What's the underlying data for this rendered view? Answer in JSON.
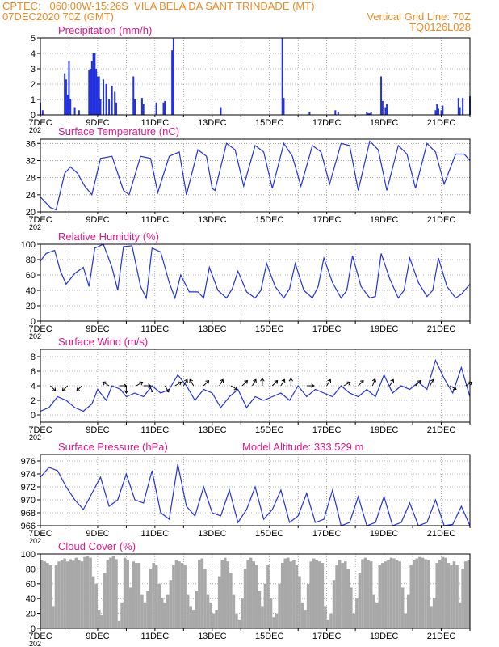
{
  "header": {
    "line1": "CPTEC:   060:00W-15:26S  VILA BELA DA SANT TRINDADE (MT)",
    "line2": "07DEC2020 70Z (GMT)",
    "grid_note": "Vertical Grid Line: 70Z",
    "code": "TQ0126L028"
  },
  "x_tick_labels": [
    "7DEC",
    "9DEC",
    "11DEC",
    "13DEC",
    "15DEC",
    "17DEC",
    "19DEC",
    "21DEC"
  ],
  "year_stub": "202",
  "colors": {
    "header": "#f08a24",
    "title": "#e0188c",
    "series": "#2233dd",
    "cloud": "#a8a8a8"
  },
  "chart_data": [
    {
      "type": "bar",
      "title": "Precipitation (mm/h)",
      "ylim": [
        0,
        5
      ],
      "yticks": [
        "0",
        "1",
        "2",
        "3",
        "4",
        "5"
      ],
      "x_days": [
        0,
        15
      ],
      "x": [
        0.0,
        0.08,
        0.85,
        0.9,
        0.95,
        1.0,
        1.05,
        1.2,
        1.35,
        1.7,
        1.75,
        1.8,
        1.85,
        1.9,
        1.95,
        2.0,
        2.05,
        2.1,
        2.2,
        2.3,
        2.4,
        2.5,
        2.6,
        2.65,
        3.25,
        3.3,
        3.55,
        3.6,
        4.05,
        4.3,
        4.35,
        4.6,
        4.65,
        6.3,
        8.45,
        8.5,
        9.4,
        10.3,
        10.4,
        11.4,
        11.45,
        11.5,
        11.55,
        11.9,
        11.95,
        12.05,
        12.1,
        13.8,
        13.85,
        13.9,
        14.0,
        14.05,
        14.6,
        14.65,
        14.75,
        15.0
      ],
      "values": [
        0.8,
        0.3,
        2.7,
        2.3,
        1.3,
        3.5,
        1.0,
        0.5,
        0.3,
        2.9,
        3.0,
        3.5,
        4.0,
        4.0,
        3.0,
        2.5,
        2.5,
        1.0,
        2.3,
        2.0,
        1.0,
        1.9,
        1.5,
        0.8,
        2.5,
        1.0,
        1.1,
        0.7,
        0.8,
        0.8,
        0.9,
        4.2,
        5.0,
        0.5,
        5.0,
        1.1,
        0.2,
        0.3,
        0.2,
        0.2,
        0.1,
        0.1,
        0.2,
        2.5,
        0.9,
        0.5,
        0.7,
        0.3,
        0.7,
        0.4,
        0.3,
        0.6,
        1.1,
        0.5,
        1.1,
        1.2
      ]
    },
    {
      "type": "line",
      "title": "Surface Temperature (nC)",
      "ylim": [
        20,
        37
      ],
      "yticks": [
        "20",
        "24",
        "28",
        "32",
        "36"
      ],
      "x_days": [
        0,
        15
      ],
      "x": [
        0.0,
        0.35,
        0.55,
        0.85,
        1.05,
        1.3,
        1.55,
        1.8,
        2.1,
        2.5,
        2.9,
        3.1,
        3.5,
        3.85,
        4.1,
        4.5,
        4.85,
        5.1,
        5.5,
        5.8,
        6.0,
        6.1,
        6.5,
        6.8,
        7.1,
        7.5,
        7.8,
        8.1,
        8.5,
        8.8,
        9.1,
        9.5,
        9.8,
        10.1,
        10.5,
        10.8,
        11.1,
        11.5,
        11.8,
        12.1,
        12.5,
        12.8,
        13.1,
        13.5,
        13.8,
        14.1,
        14.5,
        14.8,
        15.0
      ],
      "values": [
        23.5,
        21.0,
        20.5,
        29.0,
        30.5,
        29.0,
        26.0,
        24.0,
        32.5,
        33.0,
        25.0,
        24.0,
        33.0,
        32.5,
        24.5,
        33.0,
        34.0,
        24.0,
        34.5,
        33.0,
        25.5,
        25.0,
        36.0,
        34.5,
        26.0,
        35.5,
        34.0,
        25.5,
        36.0,
        33.0,
        26.0,
        35.5,
        34.0,
        26.5,
        36.0,
        35.5,
        25.0,
        36.5,
        34.5,
        25.0,
        35.5,
        33.5,
        25.5,
        36.0,
        34.0,
        26.5,
        33.5,
        33.5,
        32.0
      ]
    },
    {
      "type": "line",
      "title": "Relative Humidity (%)",
      "ylim": [
        0,
        100
      ],
      "yticks": [
        "0",
        "20",
        "40",
        "60",
        "80",
        "100"
      ],
      "x_days": [
        0,
        15
      ],
      "x": [
        0.0,
        0.2,
        0.5,
        0.7,
        0.9,
        1.2,
        1.5,
        1.7,
        1.9,
        2.2,
        2.5,
        2.7,
        2.9,
        3.2,
        3.5,
        3.7,
        3.9,
        4.2,
        4.5,
        4.7,
        4.9,
        5.2,
        5.5,
        5.7,
        5.9,
        6.2,
        6.5,
        6.7,
        6.9,
        7.2,
        7.5,
        7.7,
        7.9,
        8.2,
        8.5,
        8.7,
        8.9,
        9.2,
        9.5,
        9.7,
        9.9,
        10.2,
        10.5,
        10.7,
        10.9,
        11.2,
        11.5,
        11.7,
        11.9,
        12.2,
        12.5,
        12.7,
        12.9,
        13.2,
        13.5,
        13.7,
        13.9,
        14.2,
        14.5,
        14.7,
        15.0
      ],
      "values": [
        78,
        88,
        92,
        65,
        48,
        62,
        70,
        45,
        95,
        100,
        70,
        40,
        97,
        98,
        45,
        30,
        95,
        90,
        50,
        30,
        60,
        38,
        38,
        30,
        70,
        40,
        30,
        42,
        65,
        38,
        30,
        40,
        75,
        45,
        30,
        42,
        75,
        40,
        30,
        45,
        82,
        50,
        30,
        40,
        85,
        45,
        30,
        32,
        88,
        55,
        30,
        40,
        82,
        50,
        32,
        40,
        82,
        45,
        30,
        35,
        48
      ]
    },
    {
      "type": "line",
      "title": "Surface Wind (m/s)",
      "ylim": [
        -1,
        9
      ],
      "yticks": [
        "0",
        "2",
        "4",
        "6",
        "8"
      ],
      "x_days": [
        0,
        15
      ],
      "x": [
        0.0,
        0.3,
        0.6,
        0.9,
        1.2,
        1.5,
        1.8,
        2.0,
        2.3,
        2.5,
        2.8,
        3.0,
        3.3,
        3.6,
        3.9,
        4.2,
        4.5,
        4.8,
        5.1,
        5.4,
        5.7,
        6.0,
        6.3,
        6.6,
        6.9,
        7.2,
        7.5,
        7.8,
        8.1,
        8.4,
        8.7,
        9.0,
        9.3,
        9.6,
        9.9,
        10.2,
        10.5,
        10.8,
        11.1,
        11.4,
        11.7,
        12.0,
        12.3,
        12.6,
        12.9,
        13.2,
        13.5,
        13.8,
        14.1,
        14.4,
        14.7,
        15.0
      ],
      "values": [
        0.5,
        1.0,
        2.5,
        2.0,
        1.0,
        0.5,
        1.5,
        3.5,
        2.0,
        4.0,
        3.5,
        2.5,
        3.0,
        2.5,
        4.0,
        3.0,
        3.5,
        5.5,
        4.0,
        2.0,
        3.5,
        3.0,
        1.0,
        2.5,
        3.5,
        1.0,
        2.5,
        2.0,
        2.5,
        3.0,
        2.0,
        4.0,
        2.5,
        3.5,
        3.0,
        2.5,
        4.0,
        3.0,
        2.5,
        3.5,
        2.5,
        5.5,
        3.0,
        4.0,
        3.5,
        4.5,
        3.5,
        7.5,
        5.0,
        3.0,
        6.5,
        2.5
      ]
    },
    {
      "type": "line",
      "title": "Surface Pressure (hPa)",
      "annotation": "Model Altitude: 333.529  m",
      "ylim": [
        966,
        977
      ],
      "yticks": [
        "966",
        "968",
        "970",
        "972",
        "974",
        "976"
      ],
      "x_days": [
        0,
        15
      ],
      "x": [
        0.0,
        0.3,
        0.6,
        0.9,
        1.2,
        1.5,
        1.8,
        2.1,
        2.4,
        2.7,
        3.0,
        3.3,
        3.6,
        3.9,
        4.2,
        4.5,
        4.8,
        5.1,
        5.4,
        5.7,
        6.0,
        6.3,
        6.6,
        6.9,
        7.2,
        7.5,
        7.8,
        8.1,
        8.4,
        8.7,
        9.0,
        9.3,
        9.6,
        9.9,
        10.2,
        10.5,
        10.8,
        11.1,
        11.4,
        11.7,
        12.0,
        12.3,
        12.6,
        12.9,
        13.2,
        13.5,
        13.8,
        14.1,
        14.4,
        14.7,
        15.0
      ],
      "values": [
        973.5,
        975.0,
        974.5,
        972.0,
        970.0,
        968.5,
        971.0,
        973.5,
        969.0,
        970.0,
        974.0,
        970.0,
        969.5,
        974.5,
        968.0,
        967.0,
        975.5,
        969.0,
        967.5,
        972.0,
        968.0,
        967.5,
        971.5,
        966.5,
        968.5,
        972.0,
        967.0,
        968.5,
        971.5,
        966.5,
        967.5,
        971.0,
        966.5,
        967.0,
        971.5,
        966.0,
        966.5,
        970.5,
        966.0,
        966.5,
        970.5,
        966.0,
        966.5,
        969.5,
        965.8,
        966.5,
        970.0,
        966.0,
        966.2,
        969.0,
        966.0
      ]
    },
    {
      "type": "bar",
      "title": "Cloud Cover (%)",
      "ylim": [
        0,
        100
      ],
      "yticks": [
        "0",
        "20",
        "40",
        "60",
        "80",
        "100"
      ],
      "x_days": [
        0,
        15
      ],
      "x": [
        0.1,
        0.2,
        0.3,
        0.4,
        0.5,
        0.6,
        0.7,
        0.8,
        0.9,
        1.0,
        1.1,
        1.2,
        1.3,
        1.4,
        1.5,
        1.6,
        1.7,
        1.8,
        1.9,
        2.0,
        2.1,
        2.2,
        2.3,
        2.4,
        2.5,
        2.6,
        2.7,
        2.8,
        2.9,
        3.0,
        3.1,
        3.2,
        3.3,
        3.4,
        3.5,
        3.6,
        3.7,
        3.8,
        3.9,
        4.0,
        4.1,
        4.2,
        4.3,
        4.4,
        4.5,
        4.6,
        4.7,
        4.8,
        4.9,
        5.0,
        5.1,
        5.2,
        5.3,
        5.4,
        5.5,
        5.6,
        5.7,
        5.8,
        5.9,
        6.0,
        6.1,
        6.2,
        6.3,
        6.4,
        6.5,
        6.6,
        6.7,
        6.8,
        6.9,
        7.0,
        7.1,
        7.2,
        7.3,
        7.4,
        7.5,
        7.6,
        7.7,
        7.8,
        7.9,
        8.0,
        8.1,
        8.2,
        8.3,
        8.4,
        8.5,
        8.6,
        8.7,
        8.8,
        8.9,
        9.0,
        9.1,
        9.2,
        9.3,
        9.4,
        9.5,
        9.6,
        9.7,
        9.8,
        9.9,
        10.0,
        10.1,
        10.2,
        10.3,
        10.4,
        10.5,
        10.6,
        10.7,
        10.8,
        10.9,
        11.0,
        11.1,
        11.2,
        11.3,
        11.4,
        11.5,
        11.6,
        11.7,
        11.8,
        11.9,
        12.0,
        12.1,
        12.2,
        12.3,
        12.4,
        12.5,
        12.6,
        12.7,
        12.8,
        12.9,
        13.0,
        13.1,
        13.2,
        13.3,
        13.4,
        13.5,
        13.6,
        13.7,
        13.8,
        13.9,
        14.0,
        14.1,
        14.2,
        14.3,
        14.4,
        14.5,
        14.6,
        14.7,
        14.8,
        14.9,
        15.0
      ],
      "values": [
        92,
        90,
        88,
        85,
        30,
        85,
        90,
        92,
        94,
        90,
        93,
        91,
        95,
        92,
        90,
        96,
        97,
        95,
        70,
        60,
        25,
        18,
        75,
        92,
        95,
        97,
        93,
        10,
        35,
        95,
        92,
        55,
        90,
        88,
        88,
        45,
        35,
        50,
        80,
        88,
        85,
        60,
        40,
        35,
        45,
        65,
        85,
        92,
        90,
        88,
        85,
        45,
        30,
        25,
        50,
        92,
        94,
        80,
        45,
        35,
        20,
        25,
        70,
        92,
        95,
        90,
        75,
        45,
        20,
        12,
        40,
        80,
        92,
        95,
        90,
        85,
        50,
        30,
        60,
        85,
        40,
        15,
        20,
        60,
        88,
        94,
        95,
        90,
        92,
        85,
        70,
        35,
        25,
        60,
        90,
        94,
        92,
        90,
        88,
        30,
        12,
        20,
        65,
        85,
        92,
        88,
        90,
        80,
        55,
        20,
        40,
        75,
        93,
        95,
        92,
        90,
        45,
        35,
        85,
        88,
        90,
        92,
        95,
        94,
        92,
        90,
        55,
        20,
        45,
        85,
        92,
        94,
        96,
        95,
        93,
        92,
        30,
        40,
        88,
        92,
        96,
        95,
        88,
        85,
        90,
        85,
        35,
        80,
        90,
        92
      ]
    }
  ],
  "wind_vectors": [
    {
      "day": 0.35,
      "dir": 135
    },
    {
      "day": 0.95,
      "dir": 225
    },
    {
      "day": 1.45,
      "dir": 225
    },
    {
      "day": 2.4,
      "dir": 300
    },
    {
      "day": 2.75,
      "dir": 90
    },
    {
      "day": 3.0,
      "dir": 180
    },
    {
      "day": 3.35,
      "dir": 60
    },
    {
      "day": 3.6,
      "dir": 90
    },
    {
      "day": 3.8,
      "dir": 150
    },
    {
      "day": 4.35,
      "dir": 150
    },
    {
      "day": 4.7,
      "dir": 60
    },
    {
      "day": 5.0,
      "dir": 30
    },
    {
      "day": 5.35,
      "dir": 330
    },
    {
      "day": 5.7,
      "dir": 45
    },
    {
      "day": 6.25,
      "dir": 30
    },
    {
      "day": 6.65,
      "dir": 120
    },
    {
      "day": 7.05,
      "dir": 45
    },
    {
      "day": 7.4,
      "dir": 30
    },
    {
      "day": 7.75,
      "dir": 0
    },
    {
      "day": 8.1,
      "dir": 45
    },
    {
      "day": 8.4,
      "dir": 30
    },
    {
      "day": 8.75,
      "dir": 0
    },
    {
      "day": 9.3,
      "dir": 90
    },
    {
      "day": 10.0,
      "dir": 30
    },
    {
      "day": 10.6,
      "dir": 60
    },
    {
      "day": 11.1,
      "dir": 45
    },
    {
      "day": 11.6,
      "dir": 20
    },
    {
      "day": 12.2,
      "dir": 30
    },
    {
      "day": 13.1,
      "dir": 45
    },
    {
      "day": 13.6,
      "dir": 30
    },
    {
      "day": 14.3,
      "dir": 120
    },
    {
      "day": 14.85,
      "dir": 60
    }
  ]
}
